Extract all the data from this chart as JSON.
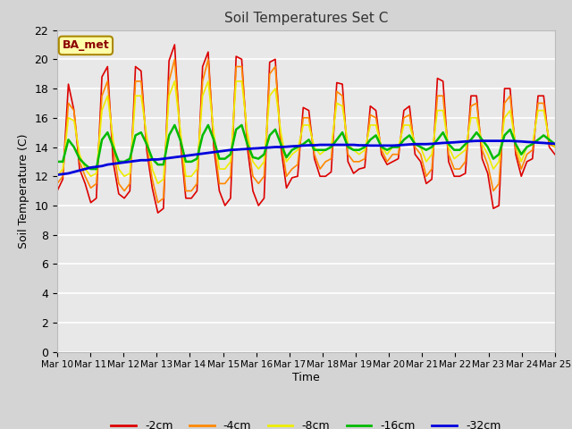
{
  "title": "Soil Temperatures Set C",
  "xlabel": "Time",
  "ylabel": "Soil Temperature (C)",
  "ylim": [
    0,
    22
  ],
  "yticks": [
    0,
    2,
    4,
    6,
    8,
    10,
    12,
    14,
    16,
    18,
    20,
    22
  ],
  "annotation": "BA_met",
  "fig_facecolor": "#d4d4d4",
  "plot_facecolor": "#e8e8e8",
  "series": {
    "-2cm": {
      "color": "#dd0000",
      "lw": 1.2
    },
    "-4cm": {
      "color": "#ff8800",
      "lw": 1.2
    },
    "-8cm": {
      "color": "#eeee00",
      "lw": 1.2
    },
    "-16cm": {
      "color": "#00bb00",
      "lw": 1.8
    },
    "-32cm": {
      "color": "#0000dd",
      "lw": 2.0
    }
  },
  "x_labels": [
    "Mar 10",
    "Mar 11",
    "Mar 12",
    "Mar 13",
    "Mar 14",
    "Mar 15",
    "Mar 16",
    "Mar 17",
    "Mar 18",
    "Mar 19",
    "Mar 20",
    "Mar 21",
    "Mar 22",
    "Mar 23",
    "Mar 24",
    "Mar 25"
  ],
  "n_days": 15,
  "pts_per_day": 6,
  "data_2cm": [
    11.0,
    11.8,
    18.3,
    16.5,
    12.5,
    11.5,
    10.2,
    10.5,
    18.8,
    19.5,
    13.0,
    10.8,
    10.5,
    11.0,
    19.5,
    19.2,
    13.8,
    11.2,
    9.5,
    9.8,
    19.9,
    21.0,
    14.5,
    10.5,
    10.5,
    11.0,
    19.5,
    20.5,
    14.0,
    11.0,
    10.0,
    10.5,
    20.2,
    20.0,
    14.0,
    11.0,
    10.0,
    10.5,
    19.8,
    20.0,
    14.0,
    11.2,
    11.9,
    12.0,
    16.7,
    16.5,
    13.2,
    12.0,
    12.0,
    12.3,
    18.4,
    18.3,
    13.0,
    12.2,
    12.5,
    12.6,
    16.8,
    16.5,
    13.5,
    12.8,
    13.0,
    13.2,
    16.5,
    16.8,
    13.5,
    13.0,
    11.5,
    11.8,
    18.7,
    18.5,
    13.0,
    12.0,
    12.0,
    12.2,
    17.5,
    17.5,
    13.2,
    12.2,
    9.8,
    10.0,
    18.0,
    18.0,
    13.5,
    12.0,
    13.0,
    13.2,
    17.5,
    17.5,
    14.0,
    13.5
  ],
  "data_4cm": [
    11.5,
    12.0,
    17.0,
    16.5,
    13.0,
    12.0,
    11.2,
    11.5,
    17.5,
    18.5,
    14.0,
    11.5,
    11.0,
    11.5,
    18.5,
    18.5,
    14.2,
    11.8,
    10.2,
    10.5,
    18.5,
    20.0,
    15.0,
    11.0,
    11.0,
    11.5,
    18.5,
    20.0,
    14.5,
    11.5,
    11.5,
    12.0,
    19.5,
    19.5,
    14.5,
    12.0,
    11.5,
    12.0,
    19.0,
    19.5,
    14.5,
    12.0,
    12.5,
    12.8,
    16.0,
    16.0,
    13.5,
    12.5,
    13.0,
    13.2,
    17.8,
    17.5,
    13.5,
    13.0,
    13.0,
    13.2,
    16.2,
    16.0,
    13.8,
    13.0,
    13.5,
    13.5,
    16.0,
    16.2,
    14.0,
    13.5,
    12.0,
    12.5,
    17.5,
    17.5,
    13.5,
    12.5,
    12.5,
    13.0,
    16.8,
    17.0,
    13.8,
    12.8,
    11.0,
    11.5,
    17.0,
    17.5,
    13.8,
    12.5,
    13.5,
    13.8,
    17.0,
    17.0,
    14.2,
    14.0
  ],
  "data_8cm": [
    12.0,
    12.5,
    16.0,
    15.8,
    13.5,
    12.5,
    12.0,
    12.2,
    16.5,
    17.5,
    14.5,
    12.5,
    12.0,
    12.2,
    17.5,
    17.5,
    14.8,
    12.5,
    11.5,
    11.8,
    17.5,
    18.5,
    15.2,
    12.0,
    12.0,
    12.5,
    17.5,
    18.5,
    15.0,
    12.5,
    12.5,
    13.0,
    18.5,
    18.5,
    15.0,
    13.0,
    12.5,
    13.0,
    17.5,
    18.0,
    15.0,
    13.0,
    13.5,
    13.8,
    15.5,
    15.5,
    14.0,
    13.5,
    13.8,
    14.0,
    17.0,
    16.8,
    14.2,
    13.8,
    13.5,
    13.8,
    15.5,
    15.5,
    14.0,
    13.5,
    14.0,
    14.0,
    15.5,
    15.5,
    14.2,
    14.0,
    13.0,
    13.5,
    16.5,
    16.5,
    14.0,
    13.2,
    13.5,
    13.8,
    16.0,
    16.0,
    14.2,
    13.5,
    12.5,
    13.0,
    16.0,
    16.5,
    14.2,
    13.0,
    14.0,
    14.2,
    16.5,
    16.5,
    14.5,
    14.0
  ],
  "data_16cm": [
    13.0,
    13.0,
    14.5,
    14.0,
    13.2,
    12.8,
    12.5,
    12.5,
    14.5,
    15.0,
    14.0,
    13.0,
    13.0,
    13.2,
    14.8,
    15.0,
    14.2,
    13.2,
    12.8,
    12.8,
    14.8,
    15.5,
    14.5,
    13.0,
    13.0,
    13.2,
    14.8,
    15.5,
    14.5,
    13.2,
    13.2,
    13.5,
    15.2,
    15.5,
    14.2,
    13.3,
    13.2,
    13.5,
    14.8,
    15.2,
    14.2,
    13.3,
    13.8,
    14.0,
    14.2,
    14.5,
    13.8,
    13.8,
    13.8,
    14.0,
    14.5,
    15.0,
    14.0,
    13.8,
    13.8,
    14.0,
    14.5,
    14.8,
    14.0,
    13.8,
    14.0,
    14.0,
    14.5,
    14.8,
    14.2,
    14.0,
    13.8,
    14.0,
    14.5,
    15.0,
    14.2,
    13.8,
    13.8,
    14.2,
    14.5,
    15.0,
    14.5,
    14.0,
    13.2,
    13.5,
    14.8,
    15.2,
    14.2,
    13.5,
    14.0,
    14.2,
    14.5,
    14.8,
    14.5,
    14.2
  ],
  "data_32cm": [
    12.1,
    12.15,
    12.2,
    12.3,
    12.4,
    12.5,
    12.6,
    12.65,
    12.7,
    12.8,
    12.85,
    12.9,
    12.95,
    13.0,
    13.05,
    13.1,
    13.1,
    13.15,
    13.15,
    13.2,
    13.25,
    13.3,
    13.35,
    13.4,
    13.45,
    13.5,
    13.55,
    13.6,
    13.65,
    13.7,
    13.75,
    13.8,
    13.82,
    13.85,
    13.87,
    13.9,
    13.92,
    13.95,
    13.97,
    14.0,
    14.0,
    14.02,
    14.05,
    14.07,
    14.1,
    14.12,
    14.12,
    14.15,
    14.15,
    14.15,
    14.15,
    14.15,
    14.15,
    14.15,
    14.12,
    14.12,
    14.1,
    14.1,
    14.1,
    14.1,
    14.1,
    14.12,
    14.15,
    14.18,
    14.2,
    14.2,
    14.2,
    14.22,
    14.25,
    14.28,
    14.3,
    14.32,
    14.35,
    14.38,
    14.4,
    14.42,
    14.42,
    14.42,
    14.42,
    14.42,
    14.42,
    14.42,
    14.4,
    14.38,
    14.35,
    14.33,
    14.3,
    14.28,
    14.25,
    14.22
  ]
}
